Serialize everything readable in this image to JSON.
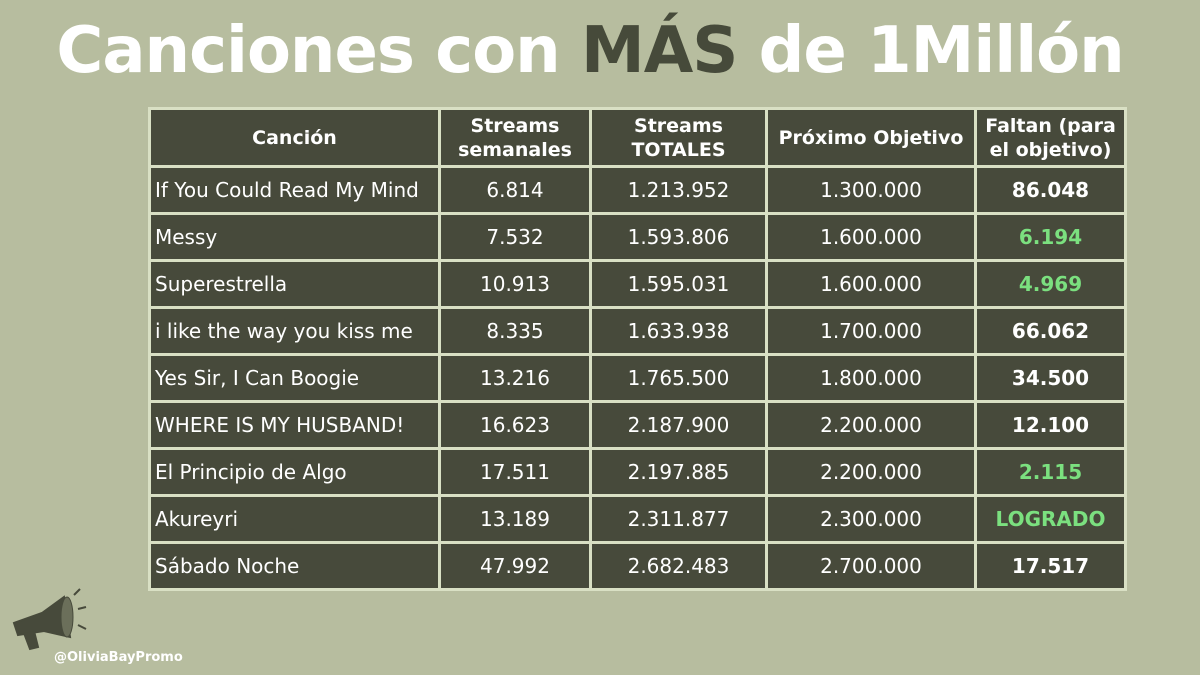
{
  "title": {
    "before": "Canciones con",
    "highlight": "MÁS",
    "after": "de 1Millón"
  },
  "table": {
    "header": [
      "Canción",
      "Streams semanales",
      "Streams TOTALES",
      "Próximo Objetivo",
      "Faltan (para el objetivo)"
    ],
    "rows": [
      [
        "If You Could Read My Mind",
        "6.814",
        "1.213.952",
        "1.300.000",
        "86.048"
      ],
      [
        "Messy",
        "7.532",
        "1.593.806",
        "1.600.000",
        "6.194"
      ],
      [
        "Superestrella",
        "10.913",
        "1.595.031",
        "1.600.000",
        "4.969"
      ],
      [
        "i like the way you kiss me",
        "8.335",
        "1.633.938",
        "1.700.000",
        "66.062"
      ],
      [
        "Yes Sir, I Can Boogie",
        "13.216",
        "1.765.500",
        "1.800.000",
        "34.500"
      ],
      [
        "WHERE IS MY HUSBAND!",
        "16.623",
        "2.187.900",
        "2.200.000",
        "12.100"
      ],
      [
        "El Principio de Algo",
        "17.511",
        "2.197.885",
        "2.200.000",
        "2.115"
      ],
      [
        "Akureyri",
        "13.189",
        "2.311.877",
        "2.300.000",
        "LOGRADO"
      ],
      [
        "Sábado Noche",
        "47.992",
        "2.682.483",
        "2.700.000",
        "17.517"
      ]
    ],
    "faltan_colors": [
      "#ffffff",
      "#7be07f",
      "#7be07f",
      "#ffffff",
      "#ffffff",
      "#ffffff",
      "#7be07f",
      "#7be07f",
      "#ffffff"
    ]
  },
  "watermark": "@OliviaBayPromo"
}
